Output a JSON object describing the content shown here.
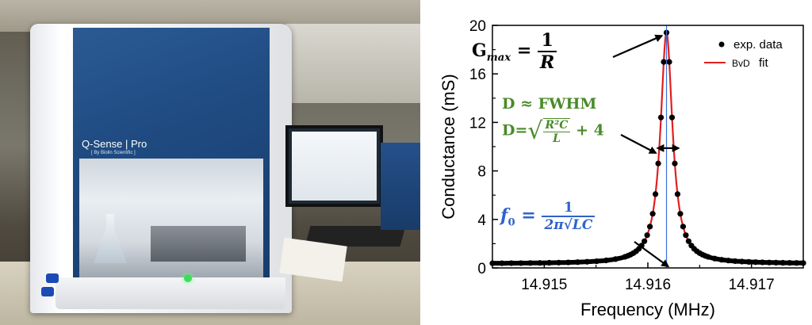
{
  "photo": {
    "brand_name": "Q-Sense",
    "model": "Pro",
    "brand_sub": "[ By Biolin Scientific ]"
  },
  "chart_data": {
    "type": "scatter",
    "xlabel": "Frequency (MHz)",
    "ylabel": "Conductance (mS)",
    "xlim": [
      14.9145,
      14.9175
    ],
    "ylim": [
      0,
      20
    ],
    "xticks": [
      14.915,
      14.916,
      14.917
    ],
    "yticks": [
      0,
      4,
      8,
      12,
      16,
      20
    ],
    "xtick_labels": [
      "14.915",
      "14.916",
      "14.917"
    ],
    "ytick_labels": [
      "0",
      "4",
      "8",
      "12",
      "16",
      "20"
    ],
    "legend": [
      {
        "label": "exp. data",
        "marker": "dot",
        "color": "#000000"
      },
      {
        "label_parts": [
          "BvD",
          "fit"
        ],
        "marker": "line",
        "color": "#e02020"
      }
    ],
    "legend_position": "top-right",
    "resonance": {
      "f0": 14.91618,
      "gmax": 19.4,
      "fwhm": 0.00014,
      "baseline": 0.35
    },
    "series": [
      {
        "name": "exp. data",
        "kind": "points",
        "x_range": [
          14.9145,
          14.9175
        ],
        "count": 64
      },
      {
        "name": "BvD fit",
        "kind": "line",
        "x_range": [
          14.9145,
          14.9175
        ]
      }
    ],
    "vertical_line": {
      "x": 14.91618,
      "color": "#3a6fd8"
    },
    "annotations": {
      "gmax": {
        "lhs": "G",
        "sub": "max",
        "eq": "=",
        "num": "1",
        "den": "R"
      },
      "fwhm": {
        "text": "D ≈ FWHM"
      },
      "dissipation": {
        "lhs": "D=",
        "num": "R²C",
        "den": "L",
        "plus": "+ 4"
      },
      "f0": {
        "lhs": "f",
        "sub": "0",
        "eq": "=",
        "num": "1",
        "den": "2π√LC"
      }
    },
    "colors": {
      "data": "#000000",
      "fit": "#e02020",
      "vline": "#3a6fd8",
      "green": "#4a8a2a",
      "blue": "#2f63c8"
    }
  }
}
